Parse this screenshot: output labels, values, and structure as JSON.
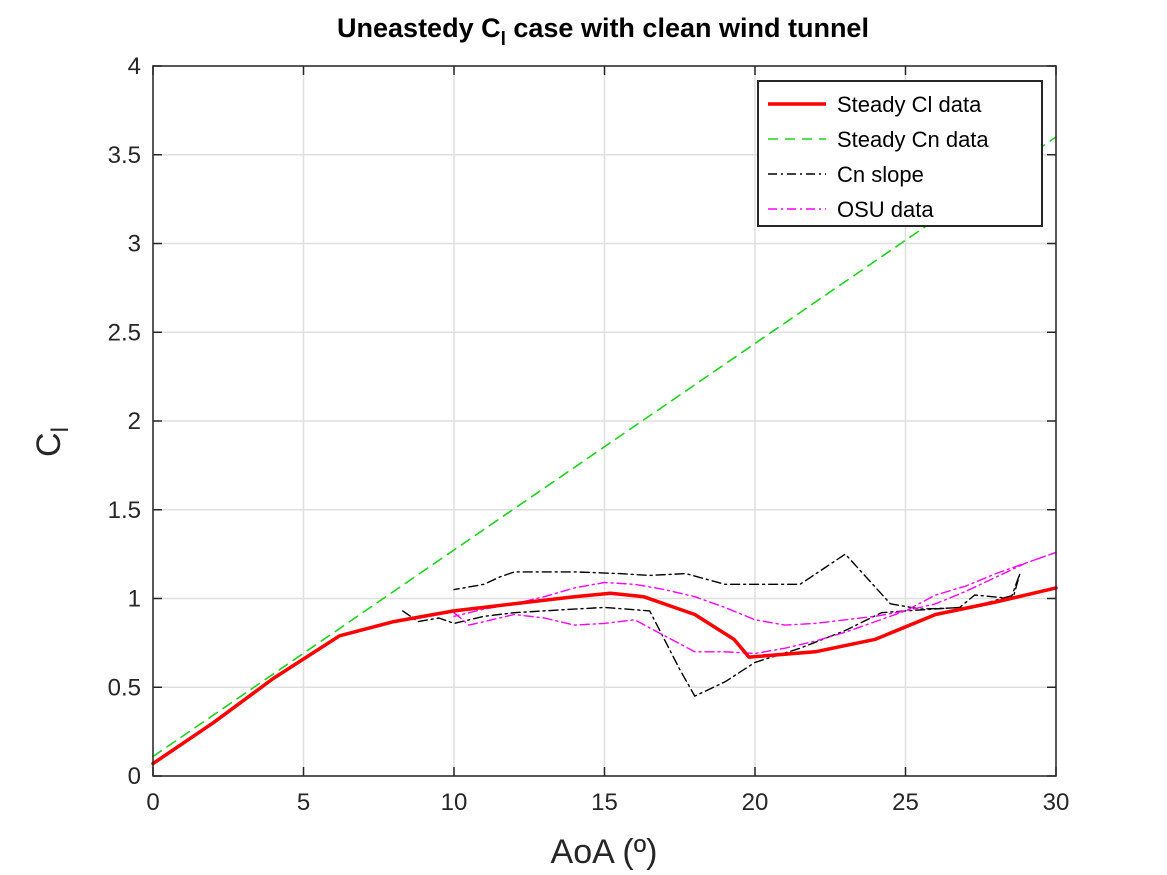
{
  "chart_data": {
    "type": "line",
    "title": "Uneastedy C",
    "title_sub": "l",
    "title_rest": " case with clean wind tunnel",
    "xlabel": "AoA (º)",
    "ylabel": "C",
    "ylabel_sub": "l",
    "xlim": [
      0,
      30
    ],
    "ylim": [
      0,
      4
    ],
    "xticks": [
      0,
      5,
      10,
      15,
      20,
      25,
      30
    ],
    "yticks": [
      0,
      0.5,
      1,
      1.5,
      2,
      2.5,
      3,
      3.5,
      4
    ],
    "xtick_labels": [
      "0",
      "5",
      "10",
      "15",
      "20",
      "25",
      "30"
    ],
    "ytick_labels": [
      "0",
      "0.5",
      "1",
      "1.5",
      "2",
      "2.5",
      "3",
      "3.5",
      "4"
    ],
    "grid": true,
    "legend_position": "top-right",
    "series": [
      {
        "name": "Steady Cl data",
        "color": "#ff0000",
        "dash": "solid",
        "width": 3.5,
        "x": [
          0,
          2,
          4,
          6.2,
          8,
          10,
          12,
          14,
          15.2,
          16.3,
          18,
          19.3,
          19.8,
          22,
          24,
          26,
          28,
          30
        ],
        "y": [
          0.07,
          0.3,
          0.55,
          0.79,
          0.87,
          0.93,
          0.97,
          1.01,
          1.03,
          1.01,
          0.91,
          0.77,
          0.67,
          0.7,
          0.77,
          0.91,
          0.98,
          1.06
        ]
      },
      {
        "name": "Steady Cn data",
        "color": "#1ed21e",
        "dash": "10,7",
        "width": 1.6,
        "x": [
          0,
          30
        ],
        "y": [
          0.11,
          3.6
        ]
      },
      {
        "name": "Cn slope",
        "color": "#000000",
        "dash": "9,4,2,4",
        "width": 1.4,
        "x": [
          8.3,
          8.8,
          9.5,
          10,
          11,
          12,
          14,
          15,
          16.5,
          17.5,
          18,
          19,
          20,
          21.5,
          23,
          24.2,
          25,
          26.8,
          27.3,
          28.5,
          28.8,
          28.6,
          27.6,
          27,
          25.5,
          24.5,
          23,
          21.5,
          20,
          19,
          17.7,
          16.5,
          15.5,
          14,
          13,
          12,
          11.5,
          11,
          10
        ],
        "y": [
          0.93,
          0.87,
          0.89,
          0.86,
          0.9,
          0.92,
          0.94,
          0.95,
          0.93,
          0.6,
          0.45,
          0.53,
          0.64,
          0.72,
          0.82,
          0.92,
          0.93,
          0.95,
          1.02,
          1.0,
          1.14,
          1.02,
          0.97,
          0.95,
          0.94,
          0.97,
          1.25,
          1.08,
          1.08,
          1.08,
          1.14,
          1.13,
          1.14,
          1.15,
          1.15,
          1.15,
          1.12,
          1.08,
          1.05
        ]
      },
      {
        "name": "OSU data",
        "color": "#ff00ff",
        "dash": "9,4,2,4",
        "width": 1.4,
        "x": [
          10,
          10.5,
          11,
          12,
          13,
          14,
          15,
          16,
          17,
          18,
          19,
          20,
          21,
          22,
          23,
          24,
          25,
          26,
          27,
          28,
          29,
          30,
          29,
          28,
          27,
          26,
          25,
          24,
          23,
          22,
          21,
          20,
          19,
          18,
          17,
          16,
          15,
          14,
          13,
          12,
          11,
          10.5,
          10
        ],
        "y": [
          0.92,
          0.85,
          0.87,
          0.91,
          0.89,
          0.85,
          0.86,
          0.88,
          0.79,
          0.7,
          0.7,
          0.69,
          0.72,
          0.76,
          0.81,
          0.87,
          0.93,
          1.02,
          1.07,
          1.14,
          1.2,
          1.26,
          1.2,
          1.12,
          1.04,
          0.97,
          0.93,
          0.9,
          0.88,
          0.86,
          0.85,
          0.88,
          0.95,
          1.01,
          1.05,
          1.08,
          1.09,
          1.06,
          1.01,
          0.97,
          0.94,
          0.92,
          0.9
        ]
      }
    ]
  }
}
